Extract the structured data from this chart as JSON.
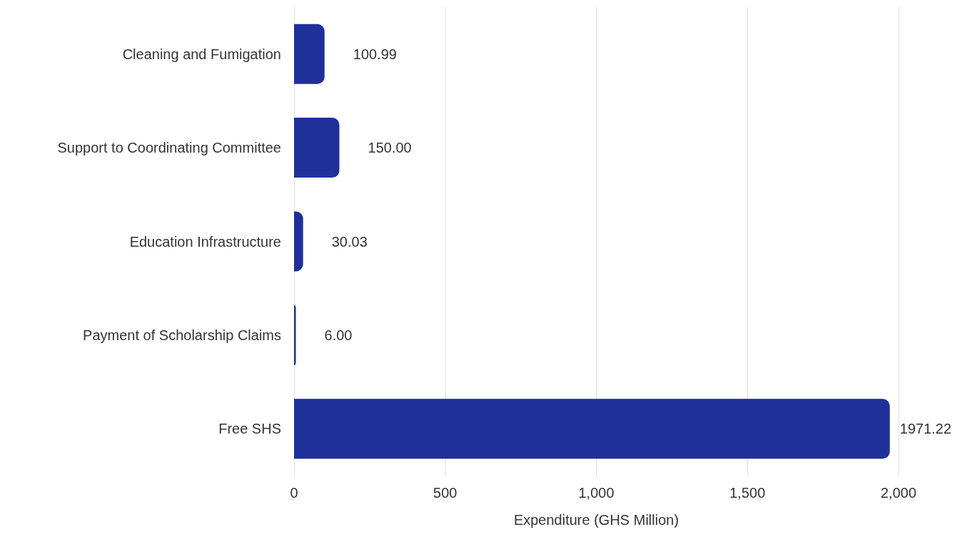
{
  "chart_data": {
    "type": "bar",
    "orientation": "horizontal",
    "xlabel": "Expenditure (GHS Million)",
    "categories": [
      "Cleaning and Fumigation",
      "Support to Coordinating Committee",
      "Education Infrastructure",
      "Payment of Scholarship Claims",
      "Free SHS"
    ],
    "values": [
      100.99,
      150,
      30.03,
      6,
      1971.22
    ],
    "value_labels": [
      "100.99",
      "150.00",
      "30.03",
      "6.00",
      "1971.22"
    ],
    "color": "#1f309a",
    "xlim": [
      0,
      2000
    ],
    "xticks": [
      0,
      500,
      {
        "value": 1000,
        "label": "1,000"
      },
      {
        "value": 1500,
        "label": "1,500"
      },
      {
        "value": 2000,
        "label": "2,000"
      }
    ],
    "grid": "x"
  }
}
